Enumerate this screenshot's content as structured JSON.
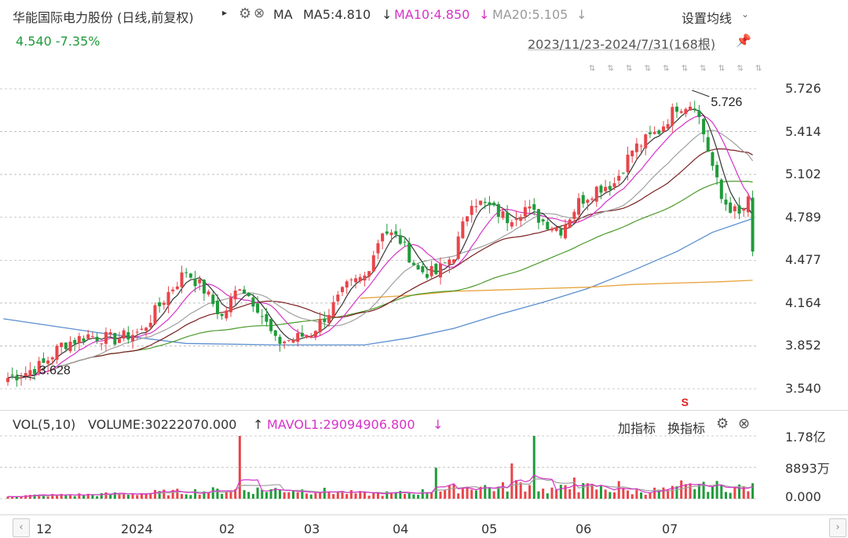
{
  "header": {
    "title": "华能国际电力股份 (日线,前复权)",
    "ma_label": "MA",
    "ma5": "MA5:4.810",
    "ma10": "MA10:4.850",
    "ma20": "MA20:5.105",
    "settings_label": "设置均线",
    "price_change": "4.540  -7.35%",
    "date_range": "2023/11/23-2024/7/31(168根)"
  },
  "volume_header": {
    "vol_label": "VOL(5,10)",
    "volume": "VOLUME:30222070.000",
    "mavol1": "MAVOL1:29094906.800",
    "add_indicator": "加指标",
    "switch_indicator": "换指标"
  },
  "price_axis": [
    "5.726",
    "5.414",
    "5.102",
    "4.789",
    "4.477",
    "4.164",
    "3.852",
    "3.540"
  ],
  "volume_axis": [
    "1.78亿",
    "8893万",
    "0.000"
  ],
  "x_axis": [
    "12",
    "2024",
    "02",
    "03",
    "04",
    "05",
    "06",
    "07"
  ],
  "annotations": {
    "high": "5.726",
    "low": "3.628",
    "marker": "S"
  },
  "colors": {
    "up": "#e8454a",
    "down": "#1f9b3a",
    "ma5": "#333333",
    "ma10": "#d633c8",
    "ma20": "#a0a0a0",
    "ma30": "#7a1f1f",
    "ma60": "#4a9a2a",
    "ma120": "#5b8fd0",
    "ma250": "#e8a33c"
  },
  "icons": [
    "triangle-right-icon",
    "gear-icon",
    "close-icon",
    "arrow-down-icon",
    "chevron-down-icon",
    "pin-icon",
    "arrow-up-icon",
    "scroll-left-icon",
    "scroll-right-icon"
  ],
  "chart_data": {
    "type": "candlestick",
    "n_bars": 168,
    "price_range": [
      3.54,
      5.726
    ],
    "volume_range": [
      0,
      178000000
    ],
    "anchors_close": [
      [
        0,
        3.62
      ],
      [
        4,
        3.66
      ],
      [
        8,
        3.72
      ],
      [
        12,
        3.86
      ],
      [
        18,
        3.93
      ],
      [
        24,
        3.9
      ],
      [
        30,
        3.96
      ],
      [
        36,
        4.24
      ],
      [
        40,
        4.4
      ],
      [
        44,
        4.26
      ],
      [
        48,
        4.06
      ],
      [
        52,
        4.3
      ],
      [
        56,
        4.14
      ],
      [
        60,
        3.88
      ],
      [
        64,
        3.9
      ],
      [
        68,
        3.95
      ],
      [
        72,
        4.1
      ],
      [
        76,
        4.28
      ],
      [
        80,
        4.36
      ],
      [
        84,
        4.7
      ],
      [
        88,
        4.62
      ],
      [
        92,
        4.4
      ],
      [
        96,
        4.38
      ],
      [
        100,
        4.52
      ],
      [
        104,
        4.92
      ],
      [
        108,
        4.86
      ],
      [
        112,
        4.78
      ],
      [
        116,
        4.86
      ],
      [
        120,
        4.76
      ],
      [
        124,
        4.7
      ],
      [
        128,
        4.9
      ],
      [
        132,
        5.0
      ],
      [
        136,
        5.04
      ],
      [
        140,
        5.28
      ],
      [
        146,
        5.42
      ],
      [
        150,
        5.6
      ],
      [
        154,
        5.62
      ],
      [
        156,
        5.4
      ],
      [
        160,
        4.92
      ],
      [
        162,
        4.86
      ],
      [
        164,
        4.8
      ],
      [
        166,
        4.9
      ],
      [
        167,
        4.54
      ]
    ],
    "vol_anchors": [
      [
        0,
        8
      ],
      [
        20,
        12
      ],
      [
        40,
        20
      ],
      [
        50,
        24
      ],
      [
        60,
        26
      ],
      [
        70,
        22
      ],
      [
        80,
        14
      ],
      [
        90,
        16
      ],
      [
        100,
        28
      ],
      [
        105,
        36
      ],
      [
        110,
        30
      ],
      [
        115,
        42
      ],
      [
        120,
        24
      ],
      [
        130,
        32
      ],
      [
        140,
        20
      ],
      [
        150,
        26
      ],
      [
        155,
        40
      ],
      [
        160,
        34
      ],
      [
        167,
        30
      ]
    ],
    "vol_spikes": [
      [
        52,
        178
      ],
      [
        96,
        88
      ],
      [
        113,
        100
      ],
      [
        118,
        178
      ],
      [
        127,
        60
      ],
      [
        137,
        50
      ],
      [
        151,
        52
      ],
      [
        156,
        48
      ]
    ]
  }
}
